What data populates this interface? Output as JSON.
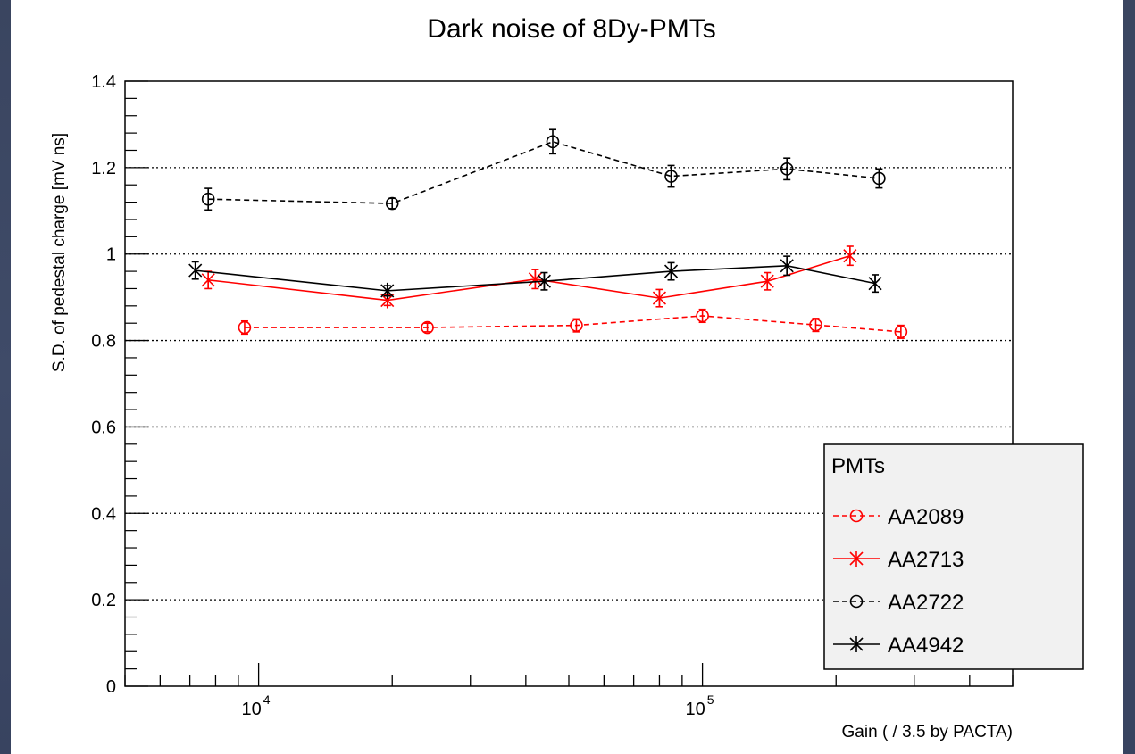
{
  "chart_data": {
    "type": "scatter",
    "title": "Dark noise of 8Dy-PMTs",
    "xlabel": "Gain ( / 3.5 by PACTA)",
    "ylabel": "S.D. of pedestal charge [mV ns]",
    "xscale": "log",
    "xlim": [
      5000,
      500000
    ],
    "ylim": [
      0,
      1.4
    ],
    "grid": {
      "y": true,
      "x": false,
      "style": "dotted"
    },
    "y_ticks": [
      "0",
      "0.2",
      "0.4",
      "0.6",
      "0.8",
      "1",
      "1.2",
      "1.4"
    ],
    "y_tick_values": [
      0,
      0.2,
      0.4,
      0.6,
      0.8,
      1.0,
      1.2,
      1.4
    ],
    "x_tick_labels": [
      {
        "base": "10",
        "exp": "4",
        "value": 10000
      },
      {
        "base": "10",
        "exp": "5",
        "value": 100000
      }
    ],
    "legend": {
      "title": "PMTs",
      "placement": "bottom-right"
    },
    "series": [
      {
        "name": "AA2089",
        "color": "#ff0000",
        "line": "dashed",
        "marker": "open-circle",
        "x": [
          9300,
          24000,
          52000,
          100000,
          180000,
          280000
        ],
        "y": [
          0.83,
          0.83,
          0.835,
          0.857,
          0.836,
          0.82
        ],
        "err": [
          0.015,
          0.01,
          0.015,
          0.015,
          0.015,
          0.015
        ]
      },
      {
        "name": "AA2713",
        "color": "#ff0000",
        "line": "solid",
        "marker": "star",
        "x": [
          7700,
          19500,
          42000,
          80000,
          140000,
          215000
        ],
        "y": [
          0.94,
          0.893,
          0.942,
          0.898,
          0.937,
          0.996
        ],
        "err": [
          0.02,
          0.012,
          0.022,
          0.02,
          0.02,
          0.022
        ]
      },
      {
        "name": "AA2722",
        "color": "#000000",
        "line": "dashed",
        "marker": "open-circle",
        "x": [
          7700,
          20000,
          46000,
          85000,
          155000,
          250000
        ],
        "y": [
          1.127,
          1.117,
          1.26,
          1.18,
          1.197,
          1.175
        ],
        "err": [
          0.025,
          0.012,
          0.028,
          0.025,
          0.025,
          0.022
        ]
      },
      {
        "name": "AA4942",
        "color": "#000000",
        "line": "solid",
        "marker": "star",
        "x": [
          7200,
          19500,
          44000,
          85000,
          155000,
          245000
        ],
        "y": [
          0.962,
          0.915,
          0.937,
          0.96,
          0.973,
          0.932
        ],
        "err": [
          0.02,
          0.012,
          0.02,
          0.02,
          0.022,
          0.02
        ]
      }
    ]
  }
}
